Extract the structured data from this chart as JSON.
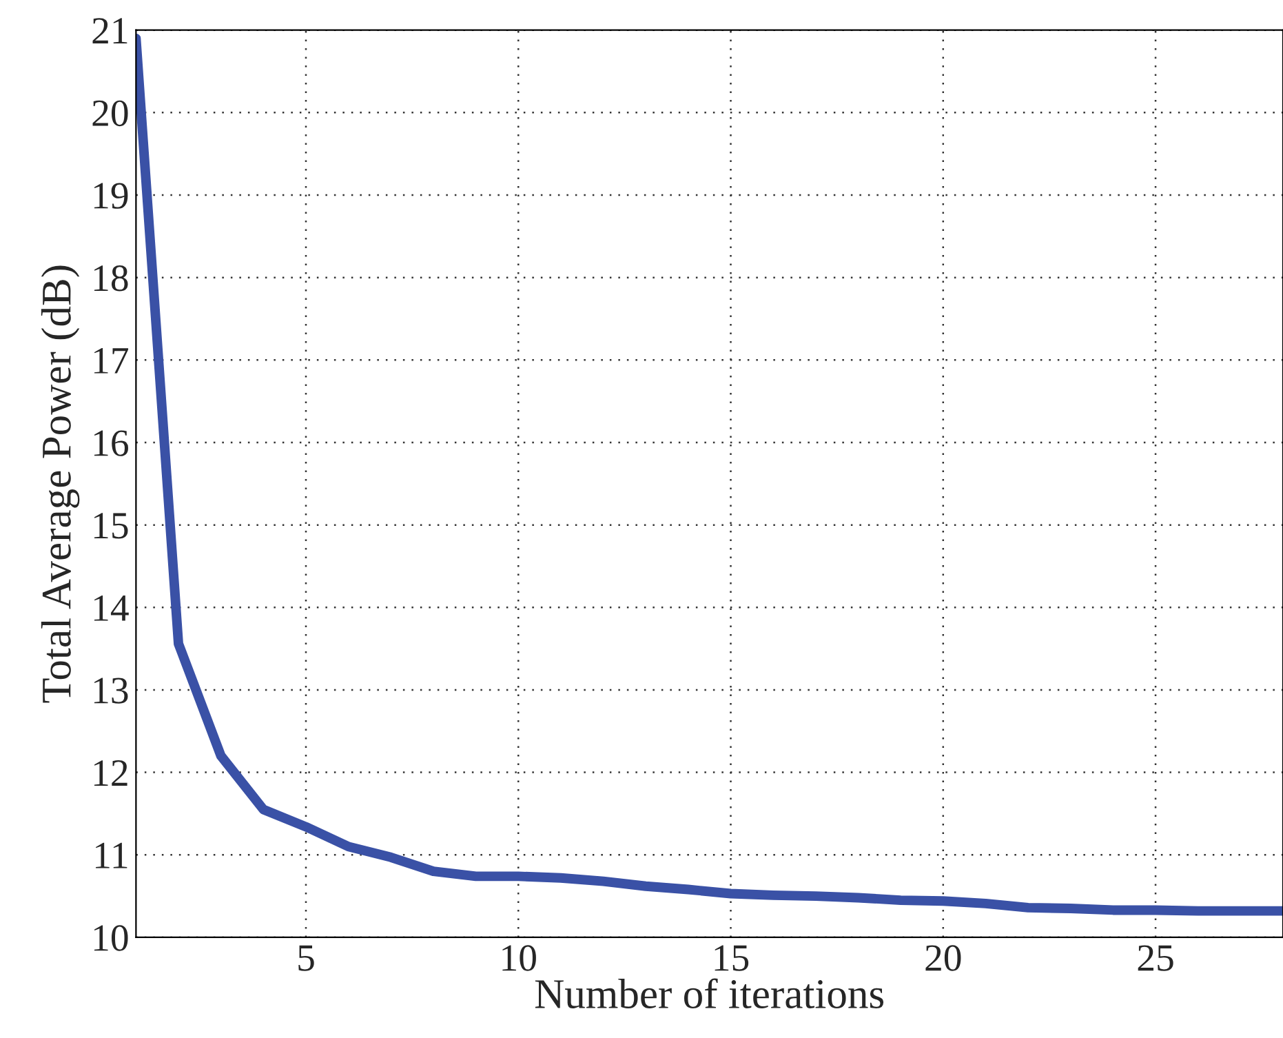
{
  "chart_data": {
    "type": "line",
    "xlabel": "Number of iterations",
    "ylabel": "Total Average Power (dB)",
    "x": [
      1,
      2,
      3,
      4,
      5,
      6,
      7,
      8,
      9,
      10,
      11,
      12,
      13,
      14,
      15,
      16,
      17,
      18,
      19,
      20,
      21,
      22,
      23,
      24,
      25,
      26,
      27,
      28
    ],
    "series": [
      {
        "color": "#3a51a6",
        "values": [
          20.9,
          13.56,
          12.2,
          11.55,
          11.34,
          11.1,
          10.97,
          10.8,
          10.74,
          10.74,
          10.72,
          10.68,
          10.62,
          10.58,
          10.53,
          10.51,
          10.5,
          10.48,
          10.45,
          10.44,
          10.41,
          10.36,
          10.35,
          10.33,
          10.33,
          10.32,
          10.32,
          10.32
        ]
      }
    ],
    "xlim": [
      1,
      28
    ],
    "ylim": [
      10,
      21
    ],
    "xticks": [
      5,
      10,
      15,
      20,
      25
    ],
    "yticks": [
      10,
      11,
      12,
      13,
      14,
      15,
      16,
      17,
      18,
      19,
      20,
      21
    ],
    "grid": true,
    "marker": "none",
    "line_style": "solid"
  }
}
